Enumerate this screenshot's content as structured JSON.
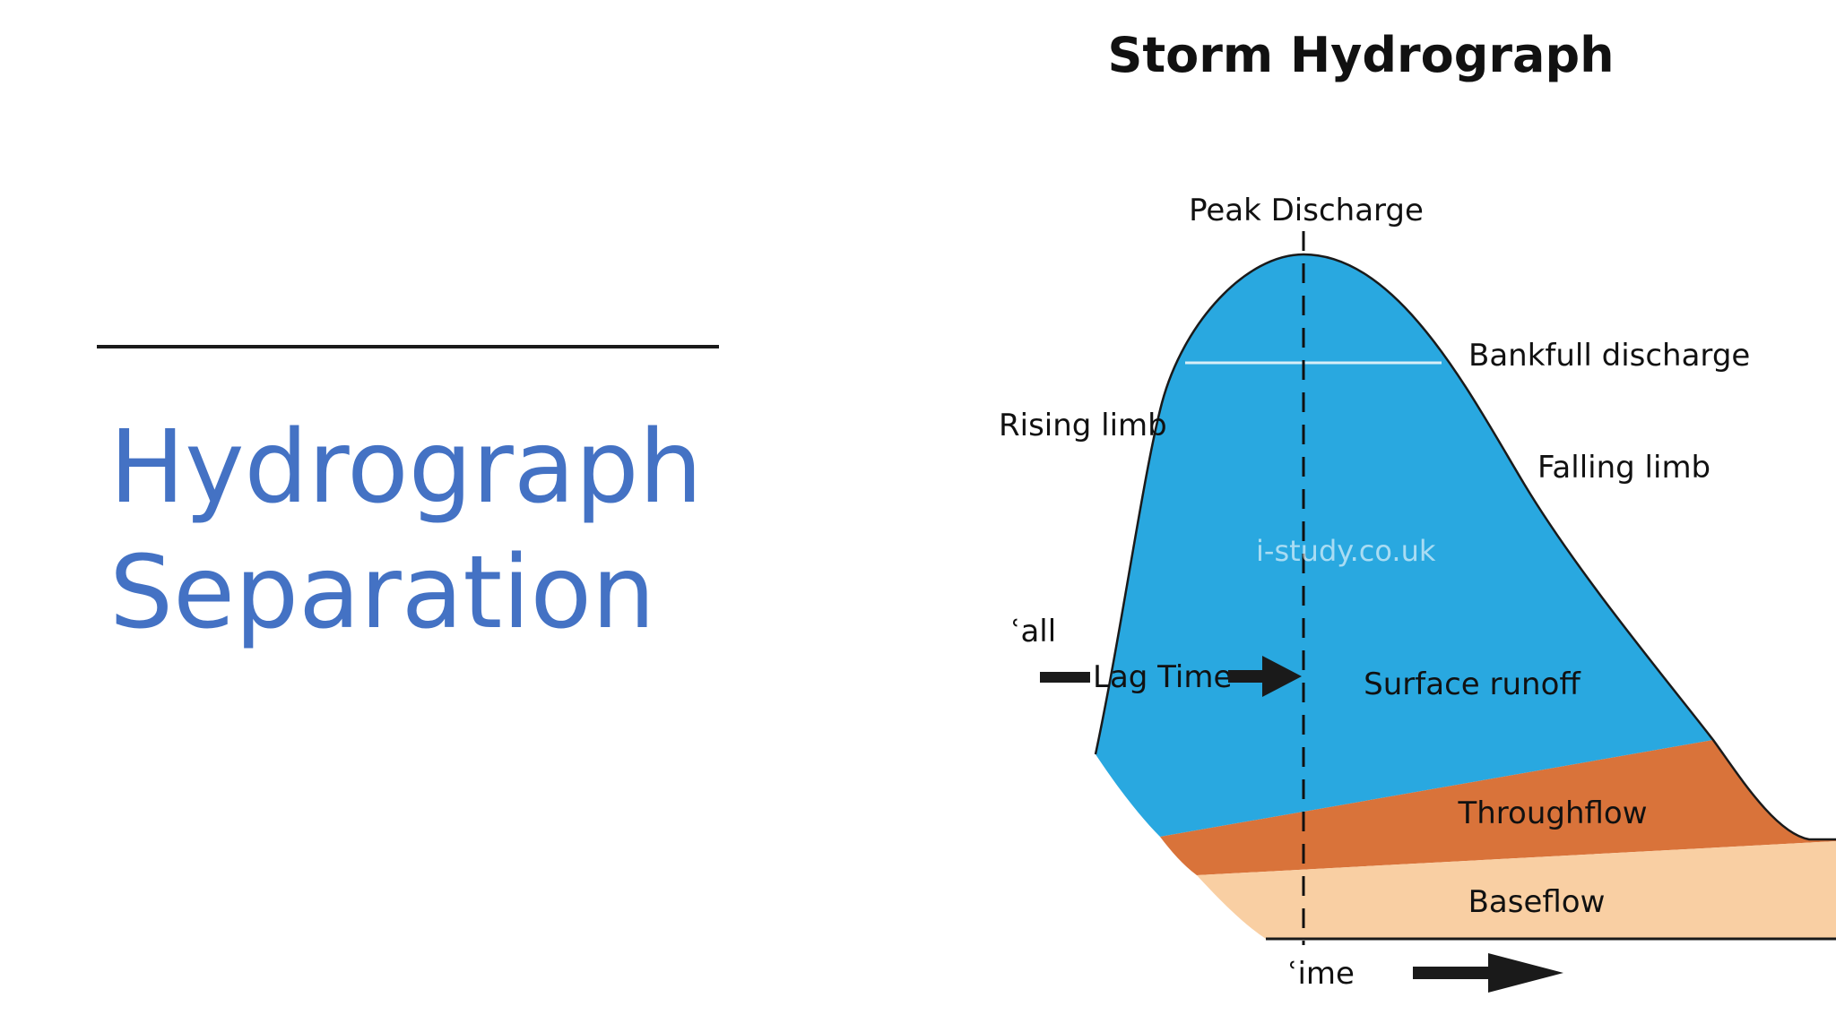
{
  "slide": {
    "title_line1": "Hydrograph",
    "title_line2": "Separation"
  },
  "diagram": {
    "title": "Storm Hydrograph",
    "labels": {
      "peak_discharge": "Peak Discharge",
      "bankfull_discharge": "Bankfull discharge",
      "rising_limb": "Rising limb",
      "falling_limb": "Falling limb",
      "watermark": "i-study.co.uk",
      "rainfall_fragment": "ʿall",
      "lag_time": "Lag Time",
      "surface_runoff": "Surface runoff",
      "throughflow": "Throughflow",
      "baseflow": "Baseflow",
      "time_fragment": "ʿime"
    },
    "colors": {
      "surface_runoff": "#29a8e0",
      "throughflow": "#d9733a",
      "baseflow": "#f9cfa3",
      "outline": "#1a1a1a",
      "bankfull_line": "#d7eef8",
      "title_text": "#4472c4"
    }
  }
}
